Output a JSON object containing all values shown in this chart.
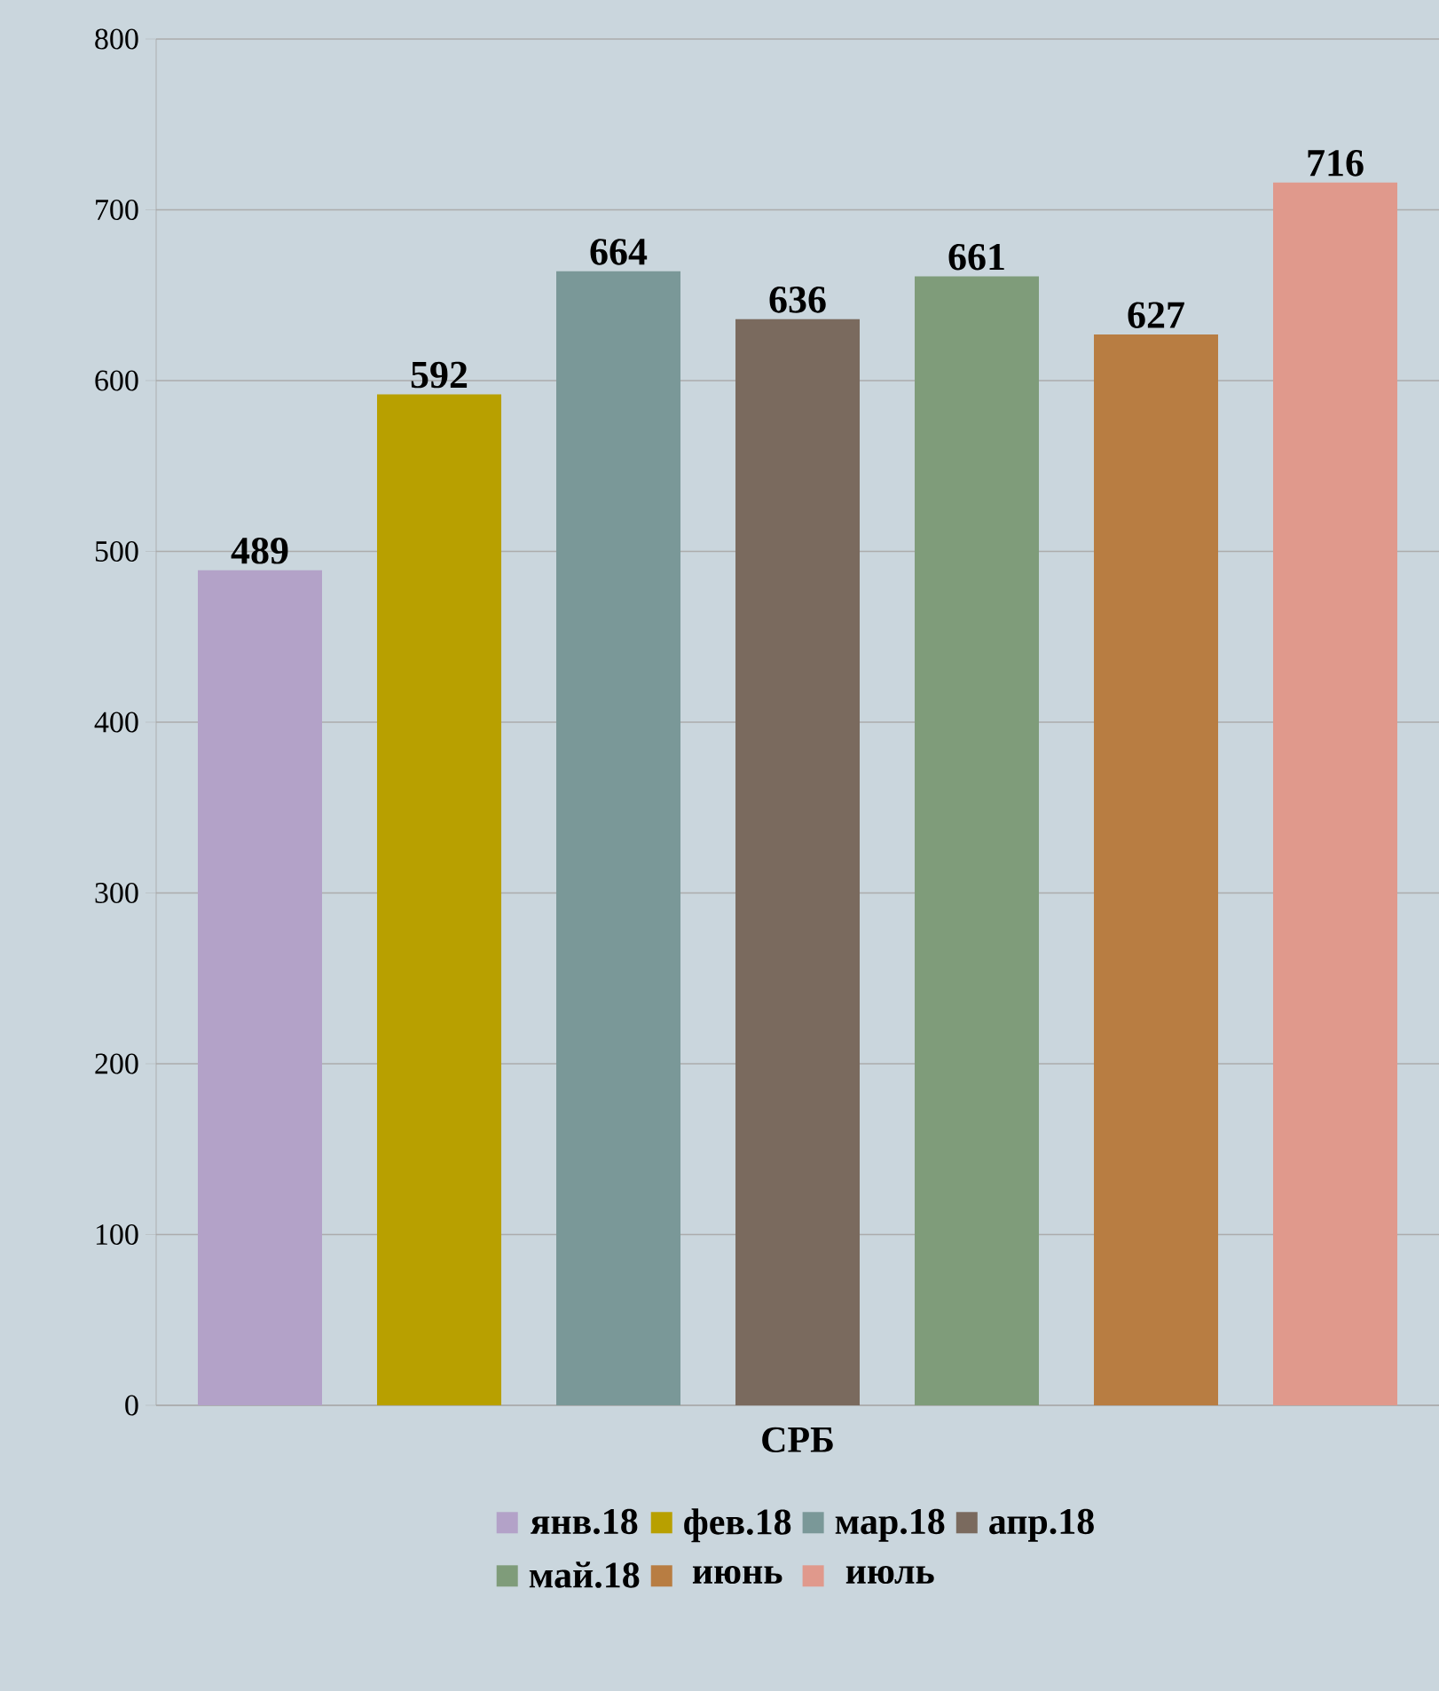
{
  "chart_data": {
    "type": "bar",
    "xlabel": "СРБ",
    "categories": [
      null
    ],
    "series": [
      {
        "name": "янв.18",
        "color": "#b3a2c8",
        "values": [
          489
        ]
      },
      {
        "name": "фев.18",
        "color": "#b8a000",
        "values": [
          592
        ]
      },
      {
        "name": "мар.18",
        "color": "#7a9898",
        "values": [
          664
        ]
      },
      {
        "name": "апр.18",
        "color": "#7a6a5e",
        "values": [
          636
        ]
      },
      {
        "name": "май.18",
        "color": "#7f9c7a",
        "values": [
          661
        ]
      },
      {
        "name": "июнь",
        "color": "#b87d42",
        "values": [
          627
        ]
      },
      {
        "name": "июль",
        "color": "#e0998c",
        "values": [
          716
        ]
      }
    ],
    "ylim": [
      0,
      800
    ],
    "yticks": [
      0,
      100,
      200,
      300,
      400,
      500,
      600,
      700,
      800
    ],
    "grid": "y",
    "legend": "bottom",
    "data_labels": true
  }
}
